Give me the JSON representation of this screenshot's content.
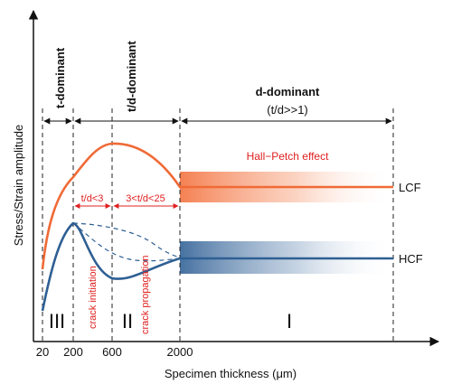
{
  "axes": {
    "x_label": "Specimen thickness (μm)",
    "y_label": "Stress/Strain amplitude",
    "x_ticks": [
      "20",
      "200",
      "600",
      "2000"
    ]
  },
  "regions": {
    "t_dominant": "t-dominant",
    "td_dominant": "t/d-dominant",
    "d_dominant": "d-dominant",
    "d_dominant_sub": "(t/d>>1)",
    "td_lt3": "t/d<3",
    "td_3_25": "3<t/d<25",
    "roman_III": "III",
    "roman_II": "II",
    "roman_I": "I"
  },
  "annotations": {
    "hall_petch": "Hall−Petch effect",
    "crack_initiation": "crack initiation",
    "crack_propagation": "crack propagation"
  },
  "curves": {
    "lcf_label": "LCF",
    "hcf_label": "HCF"
  },
  "colors": {
    "lcf": "#f06a36",
    "hcf": "#2e5f93",
    "annotation": "#e02020"
  }
}
